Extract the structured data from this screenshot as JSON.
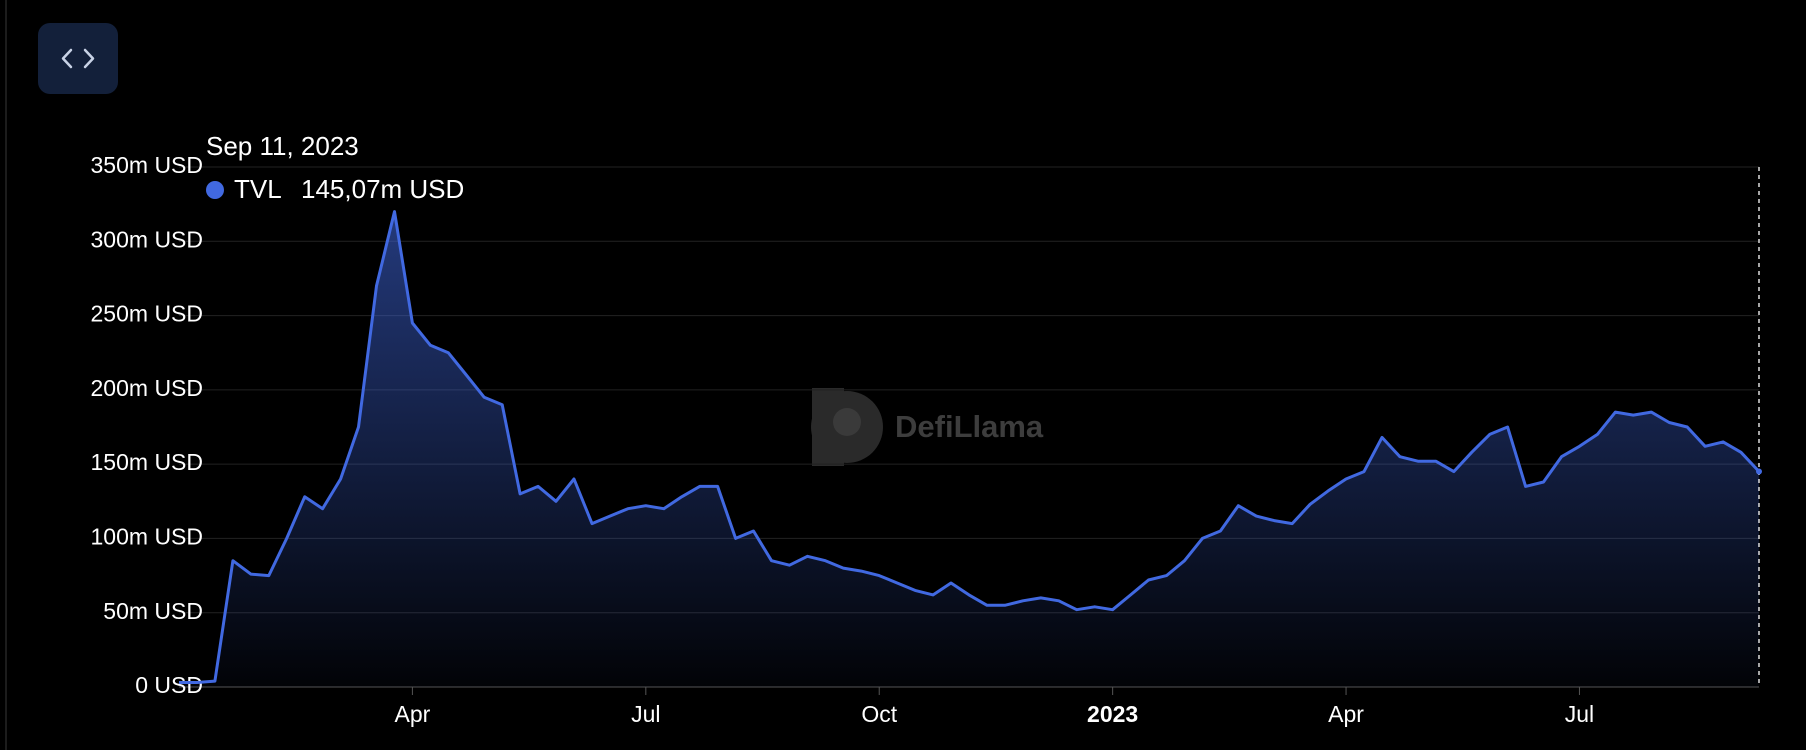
{
  "chart_data": {
    "type": "area",
    "categories": [
      null,
      null,
      null,
      null,
      null,
      null,
      null,
      null,
      null,
      null,
      null,
      null,
      null,
      "Apr",
      null,
      null,
      null,
      null,
      null,
      null,
      null,
      null,
      null,
      null,
      null,
      null,
      "Jul",
      null,
      null,
      null,
      null,
      null,
      null,
      null,
      null,
      null,
      null,
      null,
      null,
      "Oct",
      null,
      null,
      null,
      null,
      null,
      null,
      null,
      null,
      null,
      null,
      null,
      null,
      "2023",
      null,
      null,
      null,
      null,
      null,
      null,
      null,
      null,
      null,
      null,
      null,
      null,
      "Apr",
      null,
      null,
      null,
      null,
      null,
      null,
      null,
      null,
      null,
      null,
      null,
      null,
      "Jul",
      null,
      null,
      null,
      null,
      null,
      null,
      null,
      null,
      null,
      null
    ],
    "series": [
      {
        "name": "TVL",
        "color": "#4169e1",
        "values": [
          3,
          3,
          4,
          85,
          76,
          75,
          100,
          128,
          120,
          140,
          175,
          270,
          320,
          245,
          230,
          225,
          210,
          195,
          190,
          130,
          135,
          125,
          140,
          110,
          115,
          120,
          122,
          120,
          128,
          135,
          135,
          100,
          105,
          85,
          82,
          88,
          85,
          80,
          78,
          75,
          70,
          65,
          62,
          70,
          62,
          55,
          55,
          58,
          60,
          58,
          52,
          54,
          52,
          62,
          72,
          75,
          85,
          100,
          105,
          122,
          115,
          112,
          110,
          123,
          132,
          140,
          145,
          168,
          155,
          152,
          152,
          145,
          158,
          170,
          175,
          135,
          138,
          155,
          162,
          170,
          185,
          183,
          185,
          178,
          175,
          162,
          165,
          158,
          145.07
        ]
      }
    ],
    "ylim": [
      0,
      350
    ],
    "yticks": [
      {
        "value": 0,
        "label": "0 USD"
      },
      {
        "value": 50,
        "label": "50m USD"
      },
      {
        "value": 100,
        "label": "100m USD"
      },
      {
        "value": 150,
        "label": "150m USD"
      },
      {
        "value": 200,
        "label": "200m USD"
      },
      {
        "value": 250,
        "label": "250m USD"
      },
      {
        "value": 300,
        "label": "300m USD"
      },
      {
        "value": 350,
        "label": "350m USD"
      }
    ],
    "grid": true,
    "tooltip": {
      "title": "Sep 11, 2023",
      "value": 145.07,
      "value_label": "145,07m USD"
    },
    "watermark": "DefiLlama"
  }
}
